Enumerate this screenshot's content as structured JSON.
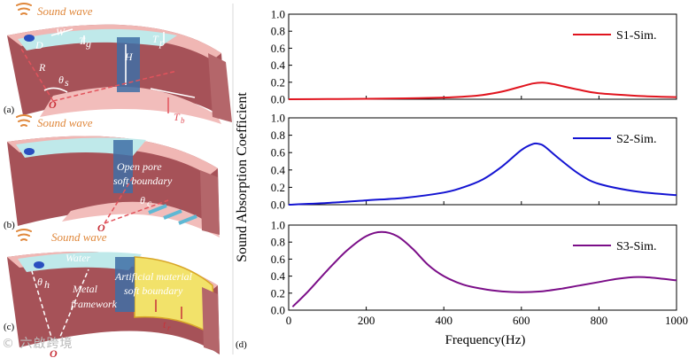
{
  "figure": {
    "panel_labels": [
      "(a)",
      "(b)",
      "(c)",
      "(d)"
    ],
    "sound_wave_label": "Sound wave",
    "panel_a": {
      "symbols": [
        "W",
        "D",
        "T",
        "g",
        "T",
        "p",
        "H",
        "R",
        "θ",
        "s",
        "O",
        "T",
        "b"
      ]
    },
    "panel_b": {
      "annotation_line1": "Open pore",
      "annotation_line2": "soft boundary",
      "symbols": [
        "θ",
        "c",
        "O"
      ]
    },
    "panel_c": {
      "water_label": "Water",
      "metal_line1": "Metal",
      "metal_line2": "framework",
      "artificial_line1": "Artificial material",
      "artificial_line2": "soft boundary",
      "symbols": [
        "θ",
        "h",
        "O",
        "t",
        "r"
      ]
    },
    "y_axis_label": "Sound Absorption Coefficient",
    "x_axis_label": "Frequency(Hz)",
    "watermark": "© 六啟跨境"
  },
  "chart_data": [
    {
      "type": "line",
      "title": "",
      "legend": "S1-Sim.",
      "legend_position": "top-right",
      "color": "#e0141e",
      "xlim": [
        0,
        1000
      ],
      "ylim": [
        0,
        1.0
      ],
      "yticks": [
        "0.0",
        "0.2",
        "0.4",
        "0.6",
        "0.8",
        "1.0"
      ],
      "xticks": [],
      "x": [
        0,
        100,
        200,
        300,
        400,
        450,
        500,
        550,
        600,
        630,
        655,
        680,
        700,
        750,
        800,
        900,
        1000
      ],
      "y": [
        0.0,
        0.002,
        0.005,
        0.01,
        0.02,
        0.03,
        0.05,
        0.09,
        0.15,
        0.185,
        0.195,
        0.18,
        0.16,
        0.11,
        0.07,
        0.04,
        0.025
      ]
    },
    {
      "type": "line",
      "title": "",
      "legend": "S2-Sim.",
      "legend_position": "top-right",
      "color": "#1414d2",
      "xlim": [
        0,
        1000
      ],
      "ylim": [
        0,
        1.0
      ],
      "yticks": [
        "0.0",
        "0.2",
        "0.4",
        "0.6",
        "0.8",
        "1.0"
      ],
      "xticks": [],
      "x": [
        0,
        100,
        200,
        300,
        400,
        450,
        500,
        550,
        600,
        630,
        645,
        660,
        700,
        750,
        800,
        900,
        1000
      ],
      "y": [
        0.0,
        0.02,
        0.05,
        0.08,
        0.14,
        0.2,
        0.29,
        0.44,
        0.63,
        0.7,
        0.7,
        0.67,
        0.52,
        0.35,
        0.24,
        0.15,
        0.11
      ]
    },
    {
      "type": "line",
      "title": "",
      "legend": "S3-Sim.",
      "legend_position": "top-right",
      "color": "#7b0e88",
      "xlim": [
        0,
        1000
      ],
      "ylim": [
        0,
        1.0
      ],
      "yticks": [
        "0.0",
        "0.2",
        "0.4",
        "0.6",
        "0.8",
        "1.0"
      ],
      "xticks": [
        "0",
        "200",
        "400",
        "600",
        "800",
        "1000"
      ],
      "xlabel": "Frequency(Hz)",
      "x": [
        10,
        50,
        100,
        150,
        200,
        240,
        280,
        320,
        360,
        400,
        450,
        500,
        550,
        600,
        650,
        700,
        750,
        800,
        850,
        900,
        940,
        1000
      ],
      "y": [
        0.04,
        0.22,
        0.47,
        0.7,
        0.87,
        0.92,
        0.87,
        0.72,
        0.53,
        0.4,
        0.3,
        0.25,
        0.22,
        0.21,
        0.22,
        0.25,
        0.29,
        0.33,
        0.37,
        0.39,
        0.38,
        0.35
      ]
    }
  ]
}
